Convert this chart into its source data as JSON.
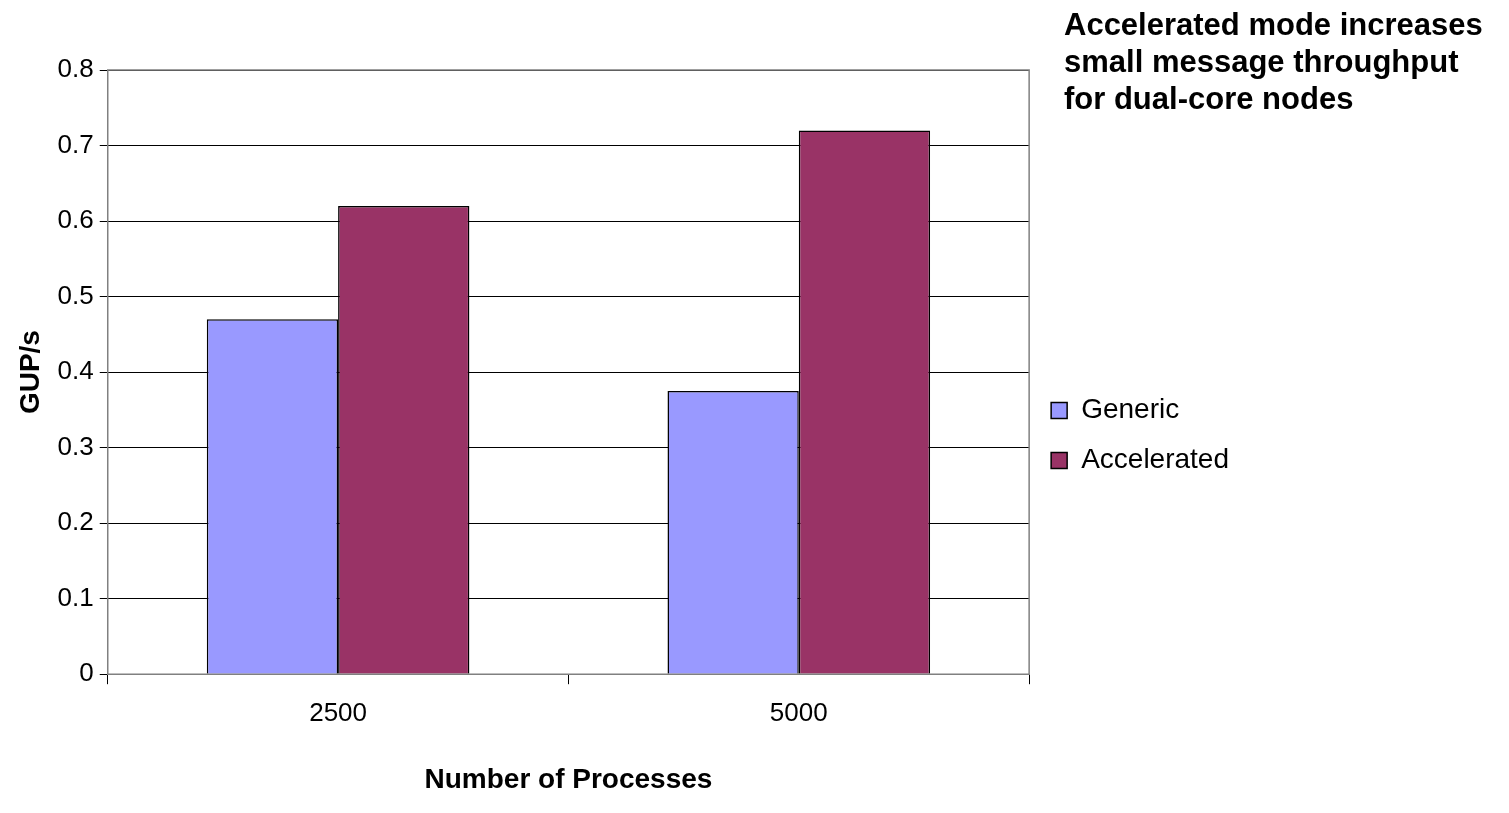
{
  "chart_data": {
    "type": "bar",
    "title": "Accelerated mode increases small message throughput for dual-core nodes",
    "xlabel": "Number of Processes",
    "ylabel": "GUP/s",
    "categories": [
      "2500",
      "5000"
    ],
    "series": [
      {
        "name": "Generic",
        "color": "#9999ff",
        "values": [
          0.47,
          0.375
        ]
      },
      {
        "name": "Accelerated",
        "color": "#993366",
        "values": [
          0.62,
          0.72
        ]
      }
    ],
    "ylim": [
      0,
      0.8
    ],
    "yticks": [
      0,
      0.1,
      0.2,
      0.3,
      0.4,
      0.5,
      0.6,
      0.7,
      0.8
    ],
    "grid": "y",
    "legend": "right"
  }
}
